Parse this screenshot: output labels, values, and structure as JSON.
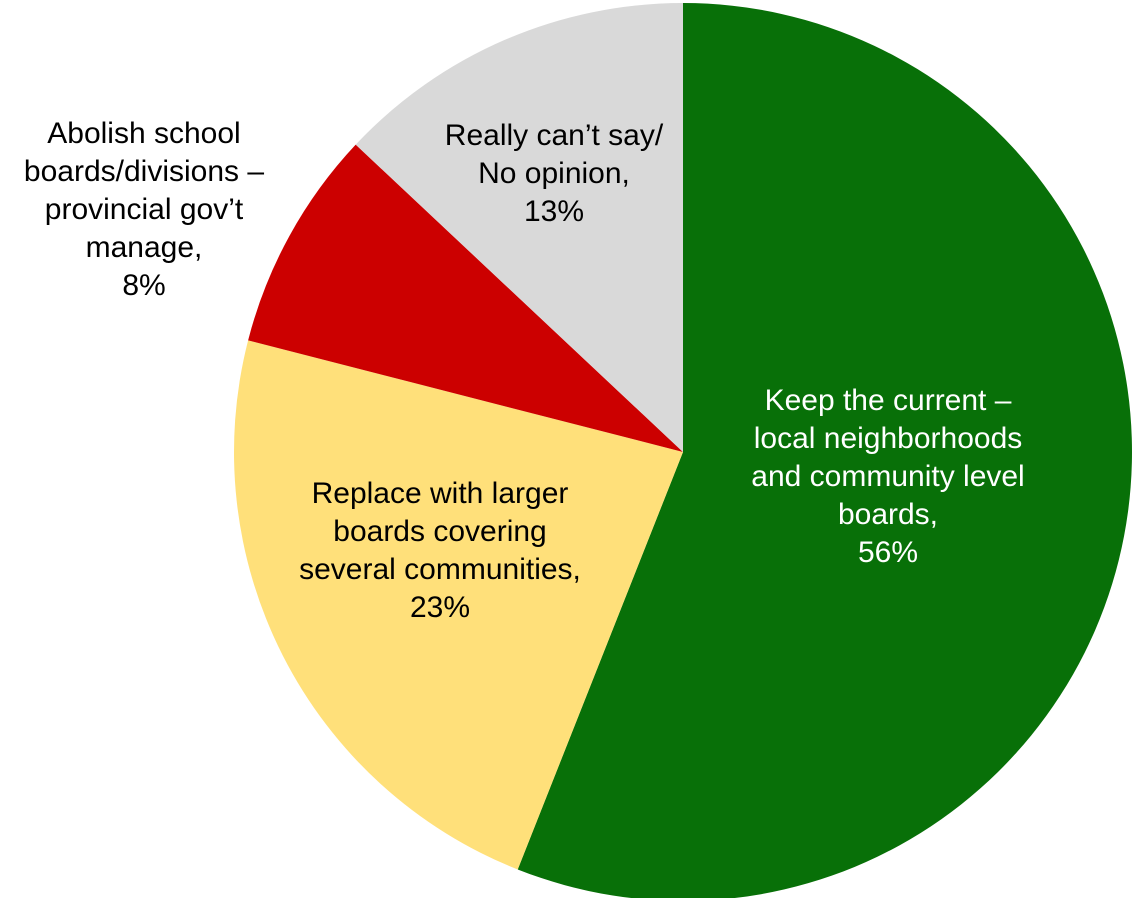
{
  "chart_data": {
    "type": "pie",
    "title": "",
    "start_angle_deg": 90,
    "direction": "clockwise",
    "slices": [
      {
        "label_lines": [
          "Keep the current –",
          "local neighborhoods",
          "and community level",
          "boards,",
          "56%"
        ],
        "value": 56,
        "color": "#087008",
        "label_color": "#ffffff"
      },
      {
        "label_lines": [
          "Replace with larger",
          "boards covering",
          "several communities,",
          "23%"
        ],
        "value": 23,
        "color": "#ffe07a",
        "label_color": "#000000"
      },
      {
        "label_lines": [
          "Abolish school",
          "boards/divisions –",
          "provincial gov’t",
          "manage,",
          "8%"
        ],
        "value": 8,
        "color": "#cc0000",
        "label_color": "#000000"
      },
      {
        "label_lines": [
          "Really can’t say/",
          "No opinion,",
          "13%"
        ],
        "value": 13,
        "color": "#d9d9d9",
        "label_color": "#000000"
      }
    ]
  }
}
